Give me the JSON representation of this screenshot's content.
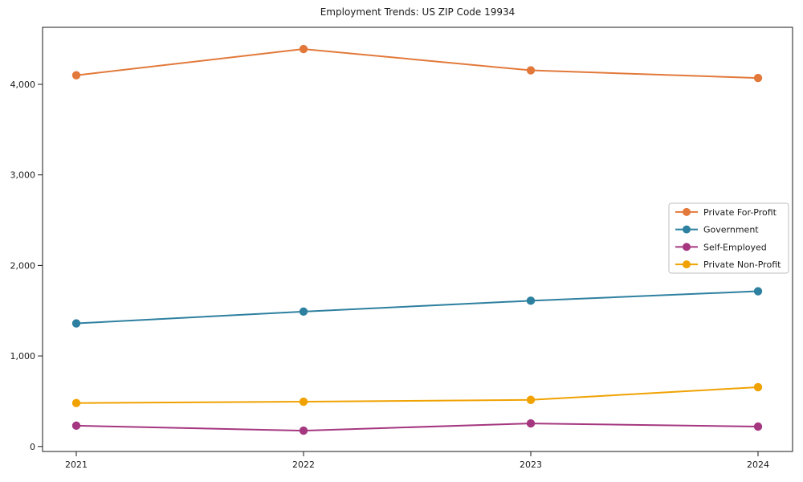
{
  "chart_data": {
    "type": "line",
    "title": "Employment Trends: US ZIP Code 19934",
    "categories": [
      "2021",
      "2022",
      "2023",
      "2024"
    ],
    "series": [
      {
        "name": "Private For-Profit",
        "color": "#E2793B",
        "values": [
          4100,
          4390,
          4155,
          4070
        ]
      },
      {
        "name": "Government",
        "color": "#2E80A0",
        "values": [
          1360,
          1490,
          1610,
          1715
        ]
      },
      {
        "name": "Self-Employed",
        "color": "#A53780",
        "values": [
          230,
          175,
          255,
          220
        ]
      },
      {
        "name": "Private Non-Profit",
        "color": "#F0A202",
        "values": [
          480,
          495,
          515,
          655
        ]
      }
    ],
    "xlabel": "",
    "ylabel": "",
    "ylim": [
      -55,
      4630
    ],
    "yticks": [
      0,
      1000,
      2000,
      3000,
      4000
    ],
    "ytick_labels": [
      "0",
      "1,000",
      "2,000",
      "3,000",
      "4,000"
    ],
    "grid": false,
    "legend_position": "center-right",
    "marker": "circle"
  },
  "style": {
    "axis_color": "#1a1a1a",
    "legend_border_color": "#bfbfbf",
    "background_color": "#ffffff"
  }
}
